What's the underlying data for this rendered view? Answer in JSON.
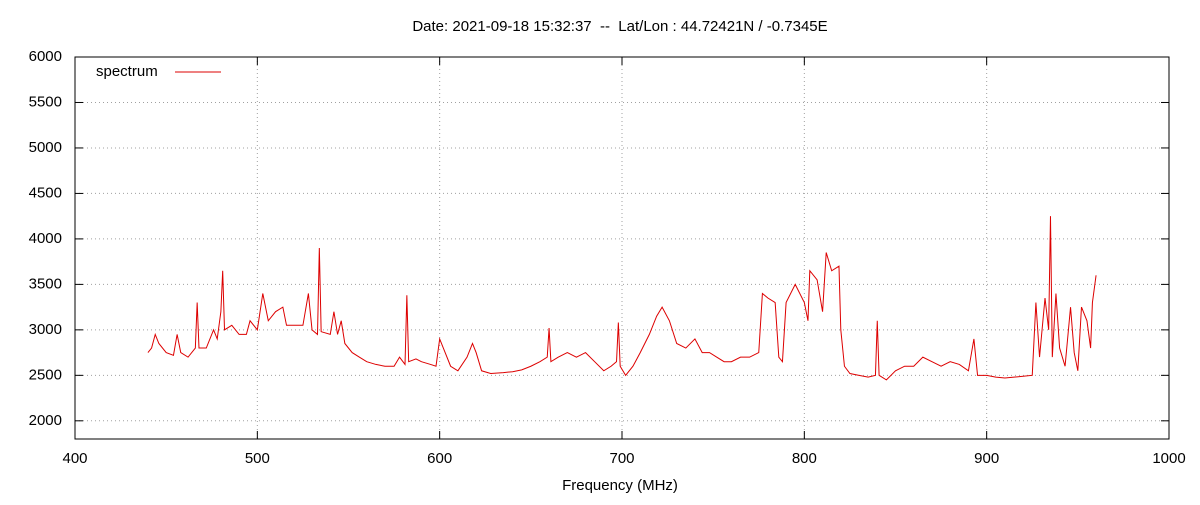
{
  "chart_data": {
    "type": "line",
    "title": "Date: 2021-09-18 15:32:37  --  Lat/Lon : 44.72421N / -0.7345E",
    "xlabel": "Frequency (MHz)",
    "xlim": [
      400,
      1000
    ],
    "xticks": [
      400,
      500,
      600,
      700,
      800,
      900,
      1000
    ],
    "ylim": [
      1800,
      6000
    ],
    "yticks": [
      2000,
      2500,
      3000,
      3500,
      4000,
      4500,
      5000,
      5500,
      6000
    ],
    "grid": true,
    "legend": "top left",
    "x": [
      440,
      442,
      444,
      446,
      450,
      454,
      456,
      458,
      462,
      466,
      467,
      468,
      472,
      476,
      478,
      480,
      481,
      482,
      486,
      490,
      494,
      496,
      500,
      503,
      506,
      510,
      514,
      516,
      520,
      525,
      528,
      530,
      533,
      534,
      535,
      540,
      542,
      544,
      546,
      548,
      552,
      556,
      560,
      565,
      570,
      575,
      578,
      581,
      582,
      583,
      587,
      590,
      595,
      598,
      600,
      603,
      606,
      610,
      615,
      618,
      620,
      623,
      628,
      635,
      640,
      645,
      650,
      655,
      659,
      660,
      661,
      665,
      670,
      675,
      680,
      685,
      690,
      694,
      697,
      698,
      699,
      702,
      706,
      710,
      715,
      719,
      722,
      726,
      730,
      735,
      740,
      744,
      748,
      752,
      756,
      760,
      765,
      770,
      775,
      777,
      780,
      784,
      785,
      786,
      788,
      790,
      795,
      800,
      802,
      803,
      807,
      810,
      812,
      815,
      819,
      820,
      822,
      825,
      830,
      835,
      839,
      840,
      841,
      845,
      850,
      855,
      860,
      865,
      870,
      875,
      880,
      885,
      890,
      893,
      895,
      900,
      905,
      910,
      915,
      920,
      925,
      927,
      929,
      932,
      934,
      935,
      936,
      938,
      940,
      943,
      946,
      948,
      950,
      952,
      955,
      957,
      958,
      960
    ],
    "series": [
      {
        "name": "spectrum",
        "color": "#dd0000",
        "values": [
          2750,
          2800,
          2950,
          2850,
          2750,
          2720,
          2950,
          2750,
          2700,
          2800,
          3300,
          2800,
          2800,
          3000,
          2900,
          3200,
          3650,
          3000,
          3050,
          2950,
          2950,
          3100,
          3000,
          3400,
          3100,
          3200,
          3250,
          3050,
          3050,
          3050,
          3400,
          3000,
          2950,
          3900,
          2980,
          2950,
          3200,
          2950,
          3100,
          2850,
          2750,
          2700,
          2650,
          2620,
          2600,
          2600,
          2700,
          2620,
          3380,
          2650,
          2680,
          2650,
          2620,
          2600,
          2900,
          2750,
          2600,
          2550,
          2700,
          2850,
          2750,
          2550,
          2520,
          2530,
          2540,
          2560,
          2600,
          2650,
          2700,
          3020,
          2650,
          2700,
          2750,
          2700,
          2750,
          2650,
          2550,
          2600,
          2650,
          3080,
          2600,
          2500,
          2600,
          2750,
          2950,
          3150,
          3250,
          3100,
          2850,
          2800,
          2900,
          2750,
          2750,
          2700,
          2650,
          2650,
          2700,
          2700,
          2750,
          3400,
          3350,
          3300,
          3000,
          2700,
          2650,
          3300,
          3500,
          3300,
          3100,
          3650,
          3550,
          3200,
          3850,
          3650,
          3700,
          3000,
          2600,
          2520,
          2500,
          2480,
          2500,
          3100,
          2500,
          2450,
          2550,
          2600,
          2600,
          2700,
          2650,
          2600,
          2650,
          2620,
          2550,
          2900,
          2500,
          2500,
          2480,
          2470,
          2480,
          2490,
          2500,
          3300,
          2700,
          3350,
          3000,
          4250,
          2700,
          3400,
          2800,
          2600,
          3250,
          2750,
          2550,
          3250,
          3100,
          2800,
          3300,
          3600
        ]
      }
    ]
  }
}
